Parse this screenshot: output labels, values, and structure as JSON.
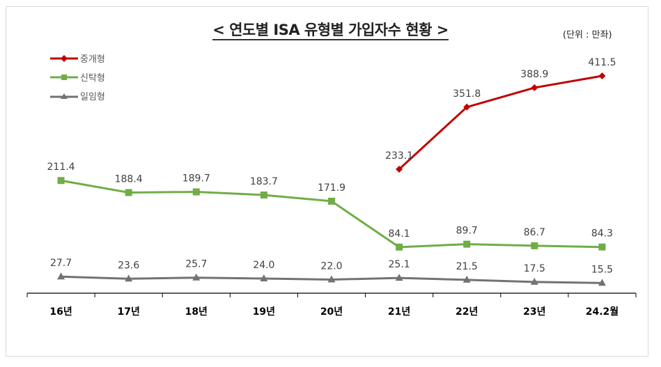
{
  "title": "< 연도별 ISA 유형별 가입자수 현황 >",
  "unit_label": "(단위 : 만좌)",
  "legend": [
    {
      "label": "중개형",
      "color": "#C00000",
      "marker": "diamond"
    },
    {
      "label": "신탁형",
      "color": "#70AD47",
      "marker": "square"
    },
    {
      "label": "일임형",
      "color": "#767171",
      "marker": "triangle"
    }
  ],
  "chart_data": {
    "type": "line",
    "title": "< 연도별 ISA 유형별 가입자수 현황 >",
    "subtitle": "(단위 : 만좌)",
    "xlabel": "",
    "ylabel": "",
    "categories": [
      "16년",
      "17년",
      "18년",
      "19년",
      "20년",
      "21년",
      "22년",
      "23년",
      "24.2월"
    ],
    "series": [
      {
        "name": "중개형",
        "color": "#C00000",
        "marker": "diamond",
        "values": [
          null,
          null,
          null,
          null,
          null,
          233.1,
          351.8,
          388.9,
          411.5
        ]
      },
      {
        "name": "신탁형",
        "color": "#70AD47",
        "marker": "square",
        "values": [
          211.4,
          188.4,
          189.7,
          183.7,
          171.9,
          84.1,
          89.7,
          86.7,
          84.3
        ]
      },
      {
        "name": "일임형",
        "color": "#767171",
        "marker": "triangle",
        "values": [
          27.7,
          23.6,
          25.7,
          24.0,
          22.0,
          25.1,
          21.5,
          17.5,
          15.5
        ]
      }
    ],
    "data_labels": true,
    "grid": false,
    "y_axis_visible": false,
    "legend_position": "top-left"
  }
}
